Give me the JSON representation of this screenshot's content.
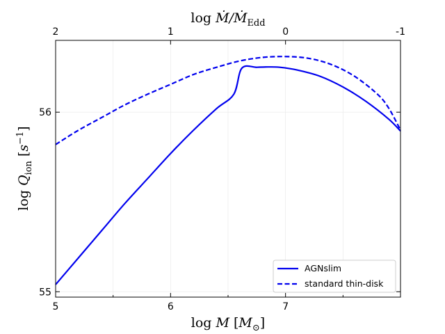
{
  "chart_data": {
    "type": "line",
    "xlabel": "log M [M⊙]",
    "ylabel": "log Q ion [s⁻¹]",
    "top_xlabel": "log Ṁ/ṀEdd",
    "xlim": [
      5,
      8
    ],
    "ylim": [
      54.97,
      56.4
    ],
    "x_ticks": [
      5,
      6,
      7
    ],
    "x_tick_labels": [
      "5",
      "6",
      "7"
    ],
    "x_minor_ticks": [
      5.5,
      6.5,
      7.5
    ],
    "y_ticks": [
      55,
      56
    ],
    "y_tick_labels": [
      "55",
      "56"
    ],
    "top_ticks": [
      {
        "x": 5.0,
        "label": "2"
      },
      {
        "x": 6.0,
        "label": "1"
      },
      {
        "x": 7.0,
        "label": "0"
      },
      {
        "x": 8.0,
        "label": "-1"
      }
    ],
    "grid": true,
    "legend_position": "lower-right",
    "series": [
      {
        "name": "AGNslim",
        "style": "solid",
        "color": "#0000ee",
        "x": [
          5.0,
          5.2,
          5.4,
          5.6,
          5.8,
          6.0,
          6.2,
          6.4,
          6.55,
          6.62,
          6.75,
          6.85,
          6.95,
          7.1,
          7.3,
          7.5,
          7.7,
          7.9,
          8.0
        ],
        "y": [
          55.04,
          55.19,
          55.34,
          55.49,
          55.63,
          55.77,
          55.9,
          56.02,
          56.1,
          56.245,
          56.25,
          56.252,
          56.25,
          56.235,
          56.2,
          56.14,
          56.06,
          55.96,
          55.895
        ]
      },
      {
        "name": "standard thin-disk",
        "style": "dashed",
        "color": "#0000ee",
        "x": [
          5.0,
          5.2,
          5.4,
          5.6,
          5.8,
          6.0,
          6.2,
          6.4,
          6.6,
          6.8,
          7.0,
          7.2,
          7.4,
          7.6,
          7.8,
          7.9,
          8.0
        ],
        "y": [
          55.82,
          55.9,
          55.97,
          56.04,
          56.1,
          56.155,
          56.21,
          56.25,
          56.285,
          56.305,
          56.31,
          56.3,
          56.265,
          56.2,
          56.1,
          56.02,
          55.9
        ]
      }
    ]
  }
}
